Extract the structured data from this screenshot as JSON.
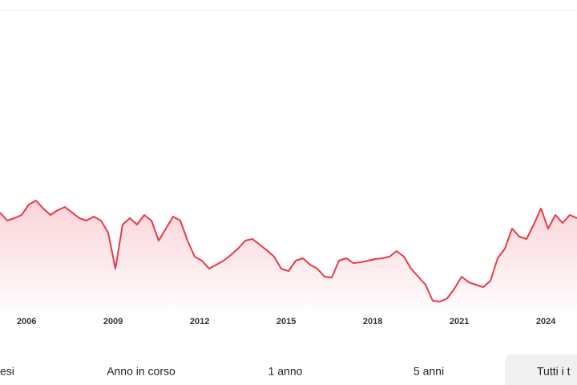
{
  "chart_data": {
    "type": "line",
    "x": [
      2005.08,
      2005.33,
      2005.58,
      2005.83,
      2006.08,
      2006.33,
      2006.58,
      2006.83,
      2007.08,
      2007.33,
      2007.58,
      2007.83,
      2008.08,
      2008.33,
      2008.58,
      2008.83,
      2009.08,
      2009.33,
      2009.58,
      2009.83,
      2010.08,
      2010.33,
      2010.58,
      2010.83,
      2011.08,
      2011.33,
      2011.58,
      2011.83,
      2012.08,
      2012.33,
      2012.58,
      2012.83,
      2013.08,
      2013.33,
      2013.58,
      2013.83,
      2014.08,
      2014.33,
      2014.58,
      2014.83,
      2015.08,
      2015.33,
      2015.58,
      2015.83,
      2016.08,
      2016.33,
      2016.58,
      2016.83,
      2017.08,
      2017.33,
      2017.58,
      2017.83,
      2018.08,
      2018.33,
      2018.58,
      2018.83,
      2019.08,
      2019.33,
      2019.58,
      2019.83,
      2020.08,
      2020.33,
      2020.58,
      2020.83,
      2021.08,
      2021.33,
      2021.58,
      2021.83,
      2022.08,
      2022.33,
      2022.58,
      2022.83,
      2023.08,
      2023.33,
      2023.58,
      2023.83,
      2024.08,
      2024.33,
      2024.58,
      2024.83,
      2025.08
    ],
    "series": [
      {
        "color": "#e8394a",
        "values": [
          120,
          110,
          113,
          117,
          130,
          135,
          125,
          117,
          123,
          127,
          120,
          113,
          110,
          115,
          110,
          95,
          50,
          105,
          113,
          105,
          117,
          110,
          85,
          100,
          115,
          110,
          85,
          65,
          60,
          50,
          55,
          60,
          67,
          75,
          85,
          87,
          80,
          73,
          65,
          50,
          47,
          60,
          63,
          55,
          50,
          40,
          39,
          60,
          63,
          57,
          58,
          60,
          62,
          63,
          65,
          72,
          65,
          50,
          40,
          30,
          10,
          9,
          13,
          25,
          40,
          33,
          30,
          27,
          35,
          63,
          75,
          100,
          90,
          87,
          105,
          125,
          100,
          117,
          107,
          117,
          113
        ]
      }
    ],
    "xlim": [
      2005.08,
      2025.08
    ],
    "ylim": [
      0,
      370
    ],
    "xticks": [
      2006,
      2009,
      2012,
      2015,
      2018,
      2021,
      2024
    ]
  },
  "buttons": [
    "esi",
    "Anno in corso",
    "1 anno",
    "5 anni",
    "Tutti i t"
  ]
}
